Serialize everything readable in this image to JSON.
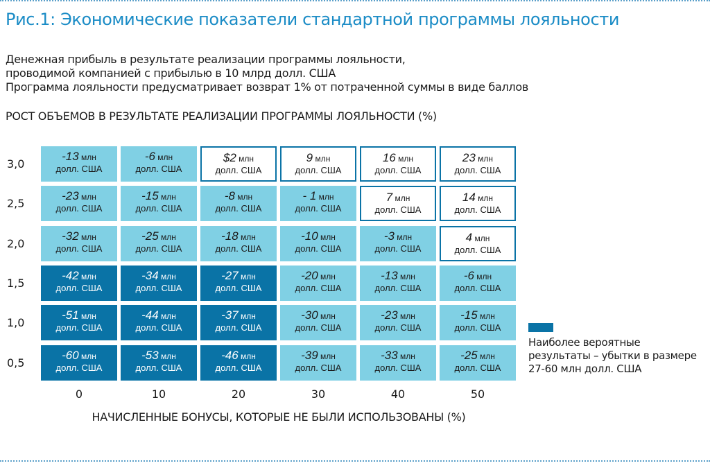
{
  "figure_title": "Рис.1: Экономические показатели стандартной программы лояльности",
  "subtitle_lines": [
    "Денежная прибыль в результате реализации программы лояльности,",
    "проводимой компанией с прибылью в 10 млрд долл. США",
    "Программа лояльности предусматривает возврат 1% от потраченной суммы в виде баллов"
  ],
  "colors": {
    "dark": "#0a73a6",
    "light": "#80d0e4",
    "white": "#ffffff",
    "title": "#1b8cc6"
  },
  "legend": {
    "lines": [
      "Наиболее вероятные",
      "результаты – убытки в размере",
      "27-60 млн долл. США"
    ]
  },
  "chart_data": {
    "type": "heatmap",
    "ylabel": "РОСТ ОБЪЕМОВ В РЕЗУЛЬТАТЕ РЕАЛИЗАЦИИ ПРОГРАММЫ ЛОЯЛЬНОСТИ (%)",
    "xlabel": "НАЧИСЛЕННЫЕ БОНУСЫ, КОТОРЫЕ НЕ БЫЛИ ИСПОЛЬЗОВАНЫ (%)",
    "x": [
      "0",
      "10",
      "20",
      "30",
      "40",
      "50"
    ],
    "y": [
      "3,0",
      "2,5",
      "2,0",
      "1,5",
      "1,0",
      "0,5"
    ],
    "unit_line1": "млн",
    "unit_line2": "долл. США",
    "rows": [
      {
        "y": "3,0",
        "values": [
          "-13",
          "-6",
          "$2",
          "9",
          "16",
          "23"
        ],
        "shades": [
          "light",
          "light",
          "white",
          "white",
          "white",
          "white"
        ]
      },
      {
        "y": "2,5",
        "values": [
          "-23",
          "-15",
          "-8",
          "- 1",
          "7",
          "14"
        ],
        "shades": [
          "light",
          "light",
          "light",
          "light",
          "white",
          "white"
        ]
      },
      {
        "y": "2,0",
        "values": [
          "-32",
          "-25",
          "-18",
          "-10",
          "-3",
          "4"
        ],
        "shades": [
          "light",
          "light",
          "light",
          "light",
          "light",
          "white"
        ]
      },
      {
        "y": "1,5",
        "values": [
          "-42",
          "-34",
          "-27",
          "-20",
          "-13",
          "-6"
        ],
        "shades": [
          "dark",
          "dark",
          "dark",
          "light",
          "light",
          "light"
        ]
      },
      {
        "y": "1,0",
        "values": [
          "-51",
          "-44",
          "-37",
          "-30",
          "-23",
          "-15"
        ],
        "shades": [
          "dark",
          "dark",
          "dark",
          "light",
          "light",
          "light"
        ]
      },
      {
        "y": "0,5",
        "values": [
          "-60",
          "-53",
          "-46",
          "-39",
          "-33",
          "-25"
        ],
        "shades": [
          "dark",
          "dark",
          "dark",
          "light",
          "light",
          "light"
        ]
      }
    ]
  }
}
